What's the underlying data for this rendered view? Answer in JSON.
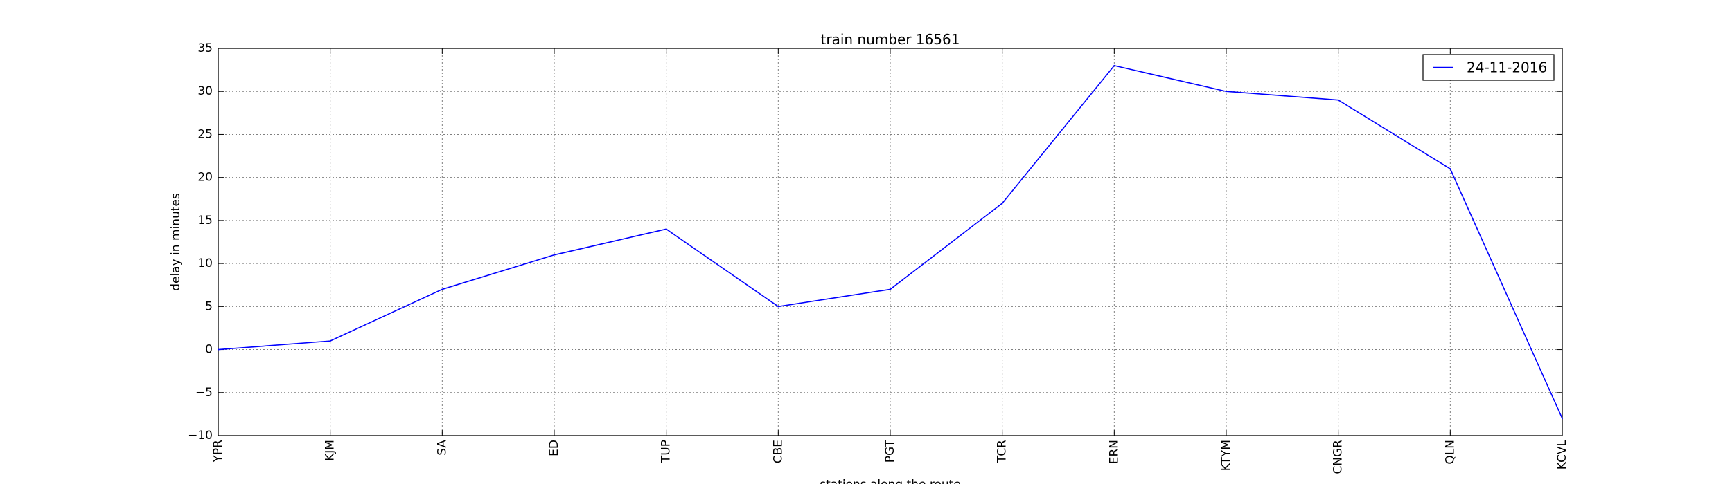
{
  "chart_data": {
    "type": "line",
    "title": "train number 16561",
    "xlabel": "stations along the route",
    "ylabel": "delay in minutes",
    "categories": [
      "YPR",
      "KJM",
      "SA",
      "ED",
      "TUP",
      "CBE",
      "PGT",
      "TCR",
      "ERN",
      "KTYM",
      "CNGR",
      "QLN",
      "KCVL"
    ],
    "series": [
      {
        "name": "24-11-2016",
        "values": [
          0,
          1,
          7,
          11,
          14,
          5,
          7,
          17,
          33,
          30,
          29,
          21,
          -8
        ],
        "color": "#0000ff"
      }
    ],
    "ylim": [
      -10,
      35
    ],
    "yticks": [
      -10,
      -5,
      0,
      5,
      10,
      15,
      20,
      25,
      30,
      35
    ],
    "ytick_labels": [
      "−10",
      "−5",
      "0",
      "5",
      "10",
      "15",
      "20",
      "25",
      "30",
      "35"
    ],
    "grid": true,
    "legend_position": "top-right"
  }
}
